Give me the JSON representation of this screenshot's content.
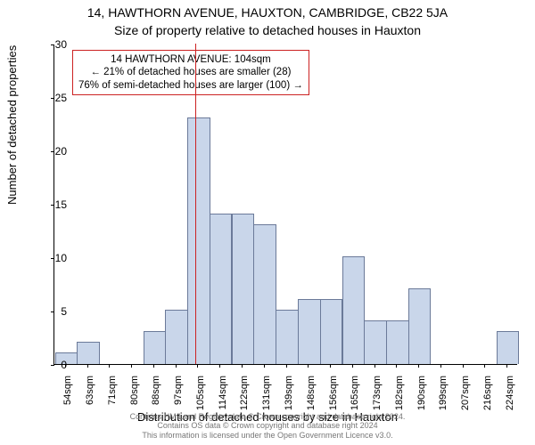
{
  "title_main": "14, HAWTHORN AVENUE, HAUXTON, CAMBRIDGE, CB22 5JA",
  "title_sub": "Size of property relative to detached houses in Hauxton",
  "ylabel": "Number of detached properties",
  "xlabel": "Distribution of detached houses by size in Hauxton",
  "footer_line1": "Contains HM Land Registry data © Crown copyright and database right 2024.",
  "footer_line2": "Contains OS data © Crown copyright and database right 2024",
  "footer_line3": "This information is licensed under the Open Government Licence v3.0.",
  "chart": {
    "type": "bar",
    "x_start": 54,
    "x_tick_step": 8.5,
    "x_tick_count": 21,
    "x_unit": "sqm",
    "y_ticks": [
      0,
      5,
      10,
      15,
      20,
      25,
      30
    ],
    "ylim": [
      0,
      30
    ],
    "bar_fill": "#c9d6ea",
    "bar_stroke": "#6b7a99",
    "ref_line_color": "#cc2222",
    "ref_line_x": 104,
    "background_color": "#ffffff",
    "axis_color": "#000000",
    "tick_fontsize": 12,
    "xlabel_fontsize": 13,
    "ylabel_fontsize": 13,
    "bar_width_ratio": 0.95,
    "values": [
      1,
      2,
      0,
      0,
      3,
      5,
      23,
      14,
      14,
      13,
      5,
      6,
      6,
      10,
      4,
      4,
      7,
      0,
      0,
      0,
      3
    ]
  },
  "callout": {
    "line1": "14 HAWTHORN AVENUE: 104sqm",
    "line2": "← 21% of detached houses are smaller (28)",
    "line3": "76% of semi-detached houses are larger (100) →",
    "border_color": "#cc2222"
  }
}
